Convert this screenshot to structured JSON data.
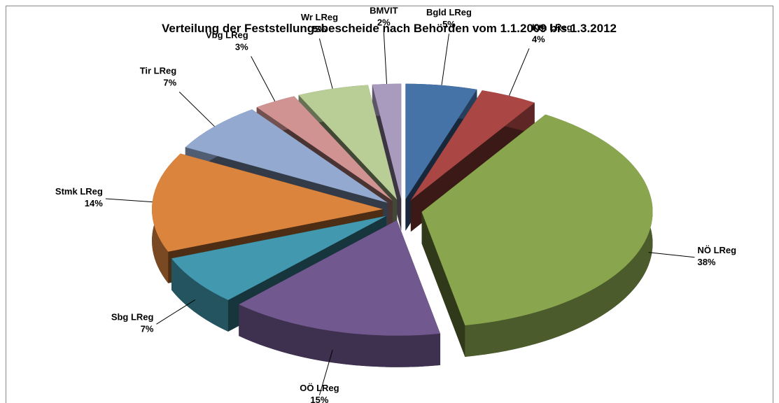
{
  "chart_data": {
    "type": "pie",
    "title": "Verteilung der Feststellungsbescheide  nach Behörden vom 1.1.2009 bis 1.3.2012",
    "categories": [
      "Bgld LReg",
      "Ktn LReg",
      "NÖ LReg",
      "OÖ LReg",
      "Sbg LReg",
      "Stmk LReg",
      "Tir LReg",
      "Vbg LReg",
      "Wr LReg",
      "BMVIT"
    ],
    "values": [
      5,
      4,
      38,
      15,
      7,
      14,
      7,
      3,
      5,
      2
    ],
    "value_labels": [
      "5%",
      "4%",
      "38%",
      "15%",
      "7%",
      "14%",
      "7%",
      "3%",
      "5%",
      "2%"
    ],
    "colors": [
      "#4572a7",
      "#aa4643",
      "#89a54e",
      "#71588f",
      "#4198af",
      "#db843d",
      "#93a9cf",
      "#d19392",
      "#b9cd96",
      "#a99bbd"
    ]
  }
}
